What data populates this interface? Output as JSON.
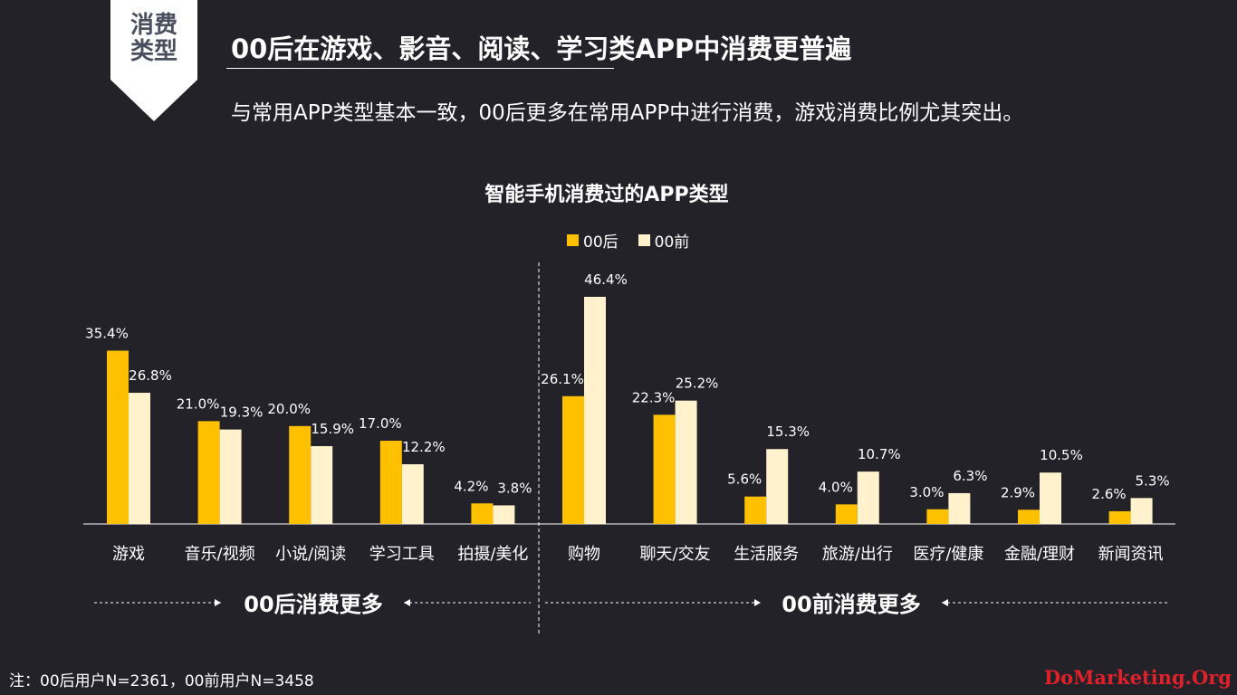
{
  "tag": {
    "line1": "消费",
    "line2": "类型"
  },
  "headline": "00后在游戏、影音、阅读、学习类APP中消费更普遍",
  "subheadline": "与常用APP类型基本一致，00后更多在常用APP中进行消费，游戏消费比例尤其突出。",
  "footnote": "注：00后用户N=2361，00前用户N=3458",
  "watermark": "DoMarketing.Org",
  "colors": {
    "background": "#222228",
    "post00": "#FFC000",
    "pre00": "#FFF2CC",
    "tag_bg": "#FFFFFF",
    "watermark": "#E0202A"
  },
  "group_labels": {
    "left": "00后消费更多",
    "right": "00前消费更多"
  },
  "chart_data": {
    "type": "bar",
    "title": "智能手机消费过的APP类型",
    "categories": [
      "游戏",
      "音乐/视频",
      "小说/阅读",
      "学习工具",
      "拍摄/美化",
      "购物",
      "聊天/交友",
      "生活服务",
      "旅游/出行",
      "医疗/健康",
      "金融/理财",
      "新闻资讯"
    ],
    "series": [
      {
        "name": "00后",
        "values": [
          35.4,
          21.0,
          20.0,
          17.0,
          4.2,
          26.1,
          22.3,
          5.6,
          4.0,
          3.0,
          2.9,
          2.6
        ]
      },
      {
        "name": "00前",
        "values": [
          26.8,
          19.3,
          15.9,
          12.2,
          3.8,
          46.4,
          25.2,
          15.3,
          10.7,
          6.3,
          10.5,
          5.3
        ]
      }
    ],
    "value_suffix": "%",
    "ylim": [
      0,
      50
    ],
    "legend_position": "top-center",
    "grid": false
  }
}
